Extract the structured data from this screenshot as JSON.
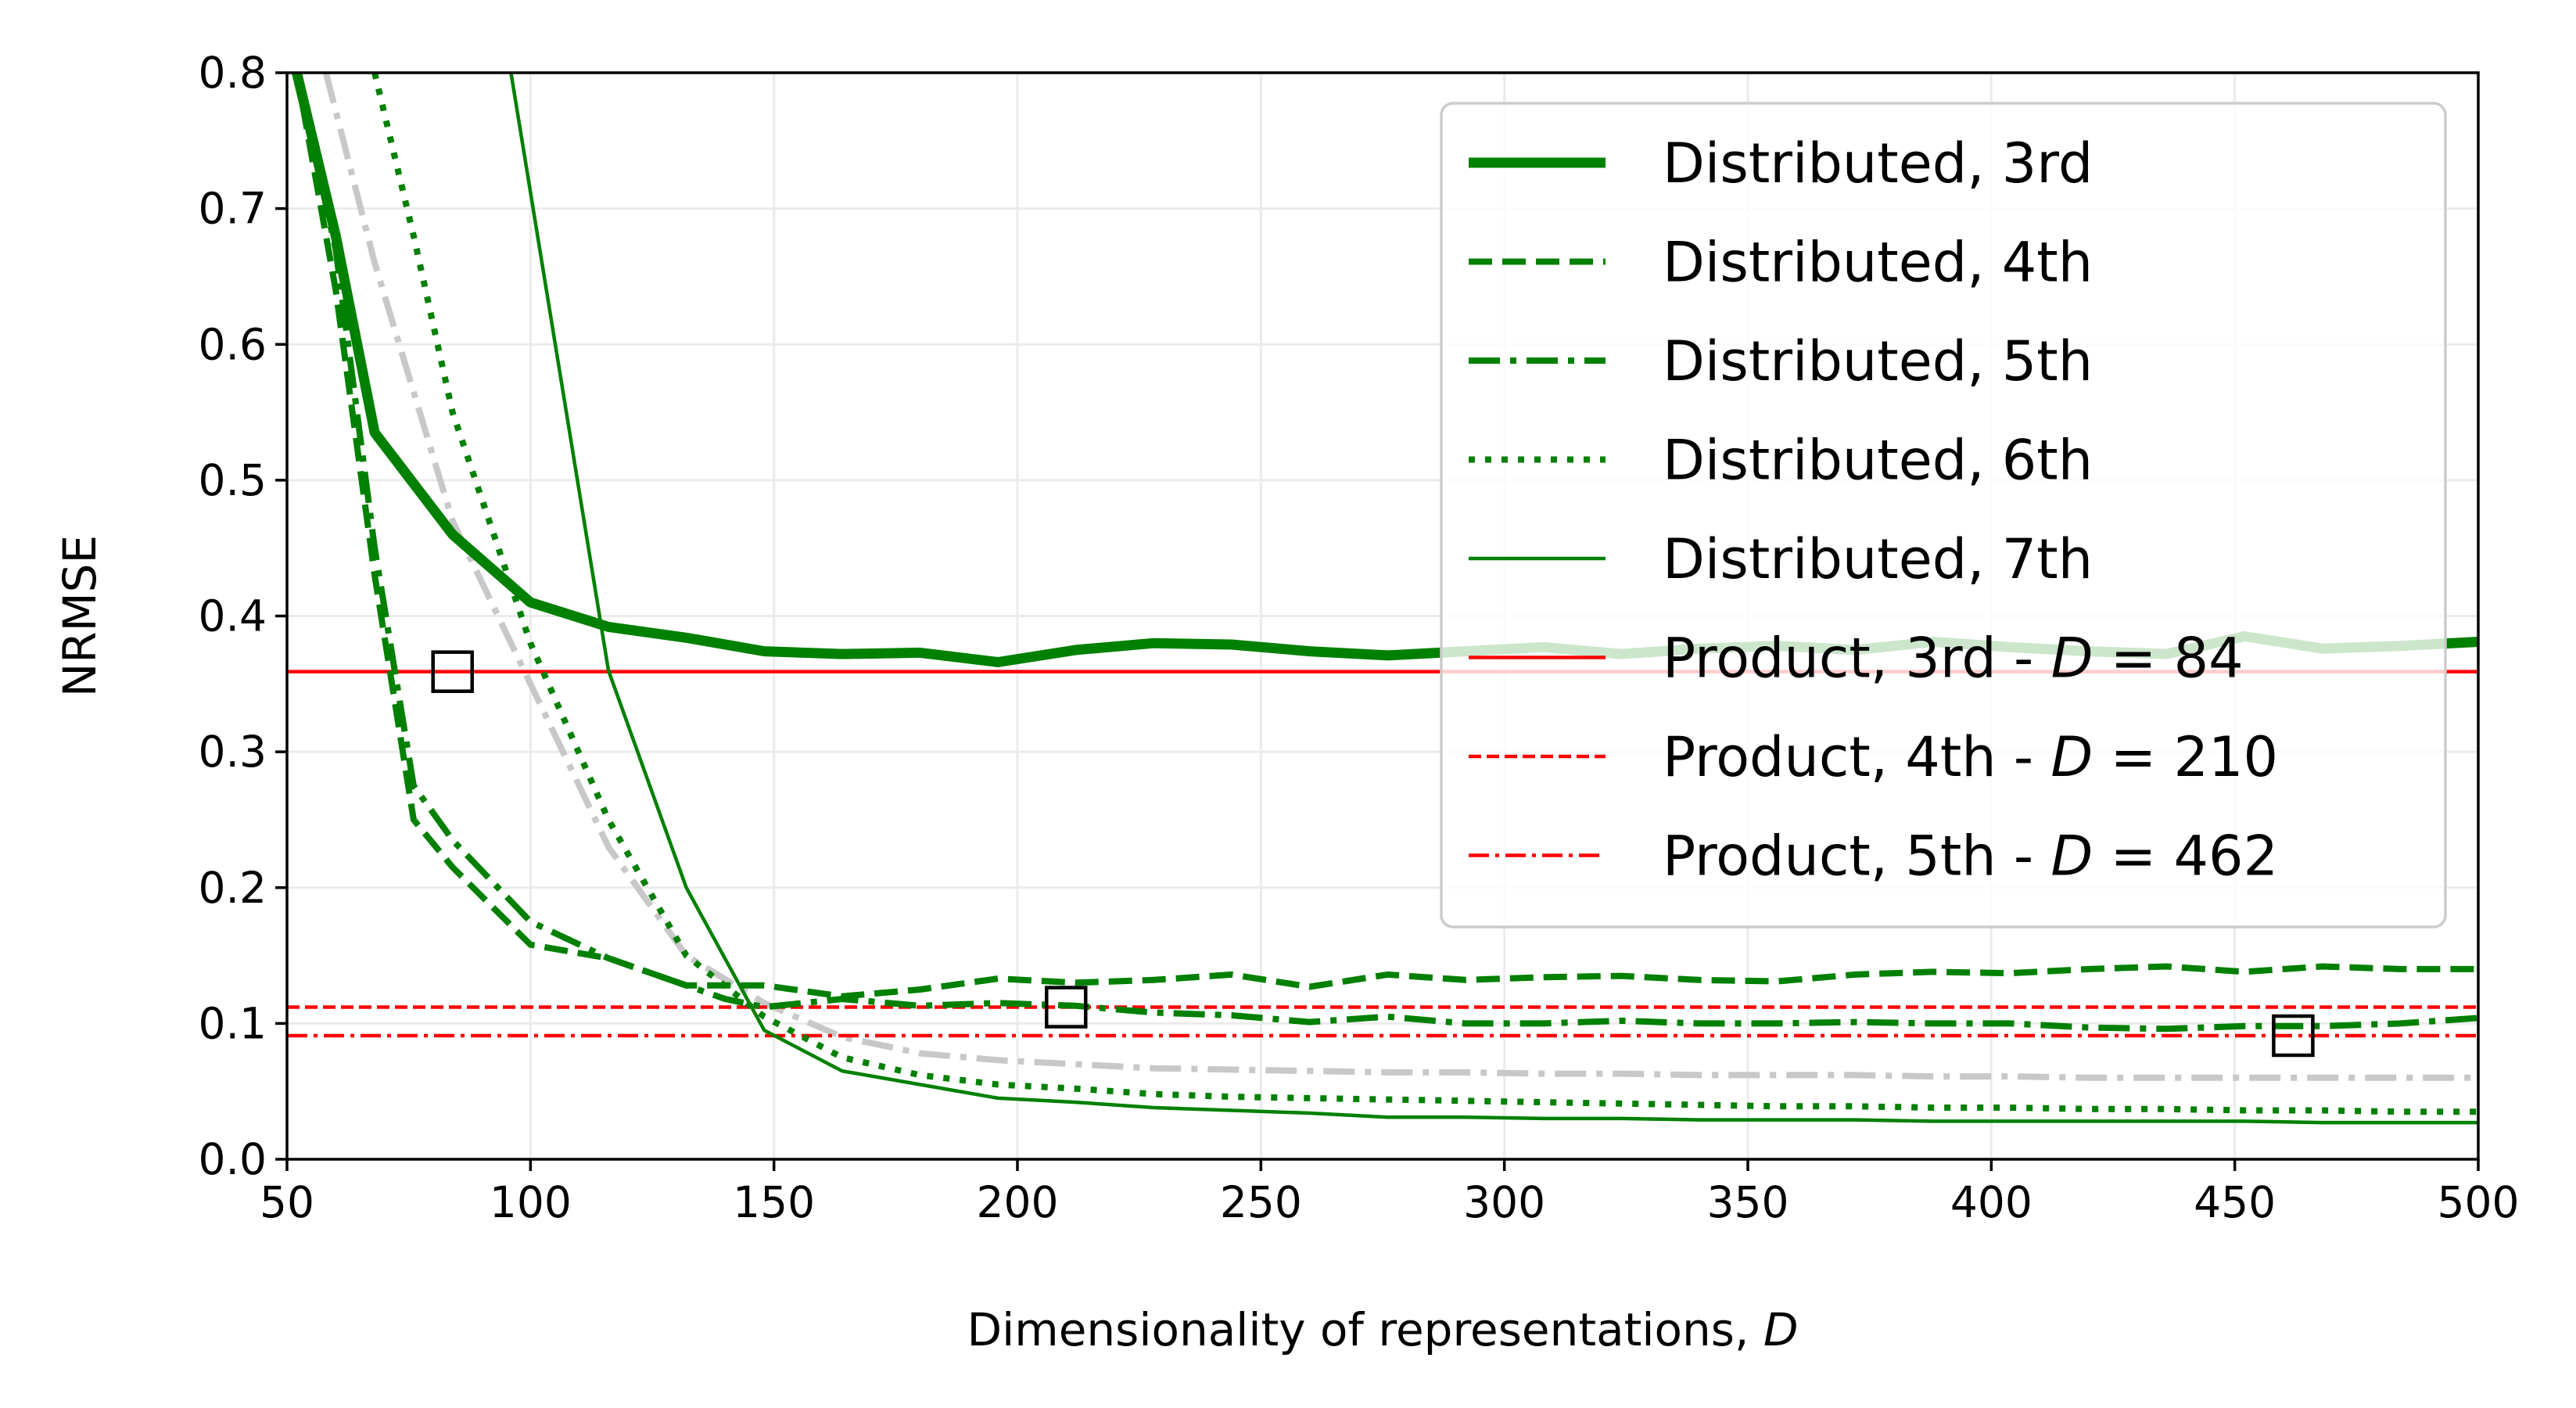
{
  "chart_data": {
    "type": "line",
    "xlabel": "Dimensionality of representations, D",
    "xlabel_parts": {
      "text": "Dimensionality of representations, ",
      "var": "D"
    },
    "ylabel": "NRMSE",
    "xlim": [
      50,
      500
    ],
    "ylim": [
      0.0,
      0.8
    ],
    "x_ticks": [
      50,
      100,
      150,
      200,
      250,
      300,
      350,
      400,
      450,
      500
    ],
    "x_tick_labels": [
      "50",
      "100",
      "150",
      "200",
      "250",
      "300",
      "350",
      "400",
      "450",
      "500"
    ],
    "y_ticks": [
      0.0,
      0.1,
      0.2,
      0.3,
      0.4,
      0.5,
      0.6,
      0.7,
      0.8
    ],
    "y_tick_labels": [
      "0.0",
      "0.1",
      "0.2",
      "0.3",
      "0.4",
      "0.5",
      "0.6",
      "0.7",
      "0.8"
    ],
    "grid": true,
    "legend_position": "top-right",
    "series": [
      {
        "name": "Distributed, 3rd",
        "style": "solid-thick",
        "color": "#008000",
        "points": [
          [
            52,
            0.8
          ],
          [
            60,
            0.68
          ],
          [
            68,
            0.535
          ],
          [
            84,
            0.46
          ],
          [
            100,
            0.41
          ],
          [
            116,
            0.392
          ],
          [
            132,
            0.384
          ],
          [
            148,
            0.374
          ],
          [
            164,
            0.372
          ],
          [
            180,
            0.373
          ],
          [
            196,
            0.366
          ],
          [
            212,
            0.375
          ],
          [
            228,
            0.38
          ],
          [
            244,
            0.379
          ],
          [
            260,
            0.374
          ],
          [
            276,
            0.371
          ],
          [
            292,
            0.374
          ],
          [
            308,
            0.377
          ],
          [
            324,
            0.372
          ],
          [
            340,
            0.376
          ],
          [
            356,
            0.378
          ],
          [
            372,
            0.375
          ],
          [
            388,
            0.381
          ],
          [
            404,
            0.377
          ],
          [
            420,
            0.374
          ],
          [
            436,
            0.372
          ],
          [
            452,
            0.385
          ],
          [
            468,
            0.376
          ],
          [
            484,
            0.378
          ],
          [
            500,
            0.381
          ]
        ]
      },
      {
        "name": "Distributed, 4th",
        "style": "dashed",
        "color": "#008000",
        "points": [
          [
            52,
            0.8
          ],
          [
            60,
            0.64
          ],
          [
            68,
            0.43
          ],
          [
            76,
            0.25
          ],
          [
            84,
            0.215
          ],
          [
            100,
            0.158
          ],
          [
            116,
            0.148
          ],
          [
            132,
            0.128
          ],
          [
            148,
            0.128
          ],
          [
            164,
            0.12
          ],
          [
            180,
            0.125
          ],
          [
            196,
            0.133
          ],
          [
            212,
            0.13
          ],
          [
            228,
            0.132
          ],
          [
            244,
            0.136
          ],
          [
            260,
            0.127
          ],
          [
            276,
            0.136
          ],
          [
            292,
            0.132
          ],
          [
            308,
            0.134
          ],
          [
            324,
            0.135
          ],
          [
            340,
            0.132
          ],
          [
            356,
            0.131
          ],
          [
            372,
            0.136
          ],
          [
            388,
            0.138
          ],
          [
            404,
            0.137
          ],
          [
            420,
            0.14
          ],
          [
            436,
            0.142
          ],
          [
            452,
            0.138
          ],
          [
            468,
            0.142
          ],
          [
            484,
            0.14
          ],
          [
            500,
            0.14
          ]
        ]
      },
      {
        "name": "Distributed, 5th",
        "style": "dashdot",
        "color": "#008000",
        "points": [
          [
            52,
            0.8
          ],
          [
            60,
            0.67
          ],
          [
            68,
            0.45
          ],
          [
            76,
            0.275
          ],
          [
            84,
            0.235
          ],
          [
            100,
            0.175
          ],
          [
            116,
            0.148
          ],
          [
            132,
            0.128
          ],
          [
            140,
            0.118
          ],
          [
            148,
            0.112
          ],
          [
            164,
            0.118
          ],
          [
            180,
            0.113
          ],
          [
            196,
            0.115
          ],
          [
            212,
            0.113
          ],
          [
            228,
            0.108
          ],
          [
            244,
            0.106
          ],
          [
            260,
            0.101
          ],
          [
            276,
            0.105
          ],
          [
            292,
            0.1
          ],
          [
            308,
            0.1
          ],
          [
            324,
            0.102
          ],
          [
            340,
            0.1
          ],
          [
            356,
            0.1
          ],
          [
            372,
            0.101
          ],
          [
            388,
            0.1
          ],
          [
            404,
            0.1
          ],
          [
            420,
            0.097
          ],
          [
            436,
            0.096
          ],
          [
            452,
            0.098
          ],
          [
            468,
            0.098
          ],
          [
            484,
            0.1
          ],
          [
            500,
            0.104
          ]
        ]
      },
      {
        "name": "Distributed, 6th",
        "style": "dotted",
        "color": "#008000",
        "points": [
          [
            68,
            0.8
          ],
          [
            76,
            0.68
          ],
          [
            84,
            0.55
          ],
          [
            100,
            0.38
          ],
          [
            116,
            0.25
          ],
          [
            132,
            0.15
          ],
          [
            148,
            0.105
          ],
          [
            164,
            0.075
          ],
          [
            180,
            0.062
          ],
          [
            196,
            0.055
          ],
          [
            212,
            0.052
          ],
          [
            228,
            0.048
          ],
          [
            244,
            0.046
          ],
          [
            260,
            0.045
          ],
          [
            276,
            0.044
          ],
          [
            292,
            0.043
          ],
          [
            308,
            0.042
          ],
          [
            324,
            0.041
          ],
          [
            340,
            0.04
          ],
          [
            356,
            0.039
          ],
          [
            372,
            0.039
          ],
          [
            388,
            0.038
          ],
          [
            404,
            0.038
          ],
          [
            420,
            0.037
          ],
          [
            436,
            0.037
          ],
          [
            452,
            0.036
          ],
          [
            468,
            0.036
          ],
          [
            484,
            0.035
          ],
          [
            500,
            0.035
          ]
        ]
      },
      {
        "name": "Distributed, 7th",
        "style": "solid-thin",
        "color": "#008000",
        "points": [
          [
            96,
            0.8
          ],
          [
            116,
            0.36
          ],
          [
            132,
            0.2
          ],
          [
            148,
            0.095
          ],
          [
            164,
            0.065
          ],
          [
            180,
            0.055
          ],
          [
            196,
            0.045
          ],
          [
            212,
            0.042
          ],
          [
            228,
            0.038
          ],
          [
            244,
            0.036
          ],
          [
            260,
            0.034
          ],
          [
            276,
            0.031
          ],
          [
            292,
            0.031
          ],
          [
            308,
            0.03
          ],
          [
            324,
            0.03
          ],
          [
            340,
            0.029
          ],
          [
            356,
            0.029
          ],
          [
            372,
            0.029
          ],
          [
            388,
            0.028
          ],
          [
            404,
            0.028
          ],
          [
            420,
            0.028
          ],
          [
            436,
            0.028
          ],
          [
            452,
            0.028
          ],
          [
            468,
            0.027
          ],
          [
            484,
            0.027
          ],
          [
            500,
            0.027
          ]
        ]
      },
      {
        "name": "",
        "style": "dashdot-light",
        "color": "#c8c8c8",
        "points": [
          [
            58,
            0.8
          ],
          [
            68,
            0.66
          ],
          [
            84,
            0.47
          ],
          [
            100,
            0.35
          ],
          [
            116,
            0.23
          ],
          [
            132,
            0.15
          ],
          [
            148,
            0.115
          ],
          [
            164,
            0.09
          ],
          [
            180,
            0.078
          ],
          [
            196,
            0.073
          ],
          [
            212,
            0.07
          ],
          [
            228,
            0.067
          ],
          [
            244,
            0.066
          ],
          [
            260,
            0.065
          ],
          [
            276,
            0.064
          ],
          [
            292,
            0.064
          ],
          [
            308,
            0.063
          ],
          [
            324,
            0.063
          ],
          [
            340,
            0.062
          ],
          [
            356,
            0.062
          ],
          [
            372,
            0.062
          ],
          [
            388,
            0.061
          ],
          [
            404,
            0.061
          ],
          [
            420,
            0.06
          ],
          [
            436,
            0.06
          ],
          [
            452,
            0.06
          ],
          [
            468,
            0.06
          ],
          [
            484,
            0.06
          ],
          [
            500,
            0.06
          ]
        ]
      },
      {
        "name": "Product, 3rd - D = 84",
        "label_text": "Product, 3rd - ",
        "label_var": "D",
        "label_value": " = 84",
        "style": "hline-solid",
        "color": "#ff0000",
        "y": 0.359,
        "marker": [
          84,
          0.359
        ]
      },
      {
        "name": "Product, 4th - D = 210",
        "label_text": "Product, 4th - ",
        "label_var": "D",
        "label_value": " = 210",
        "style": "hline-dashed",
        "color": "#ff0000",
        "y": 0.112,
        "marker": [
          210,
          0.112
        ]
      },
      {
        "name": "Product, 5th - D = 462",
        "label_text": "Product, 5th - ",
        "label_var": "D",
        "label_value": " = 462",
        "style": "hline-dashdot",
        "color": "#ff0000",
        "y": 0.091,
        "marker": [
          462,
          0.091
        ]
      }
    ]
  }
}
